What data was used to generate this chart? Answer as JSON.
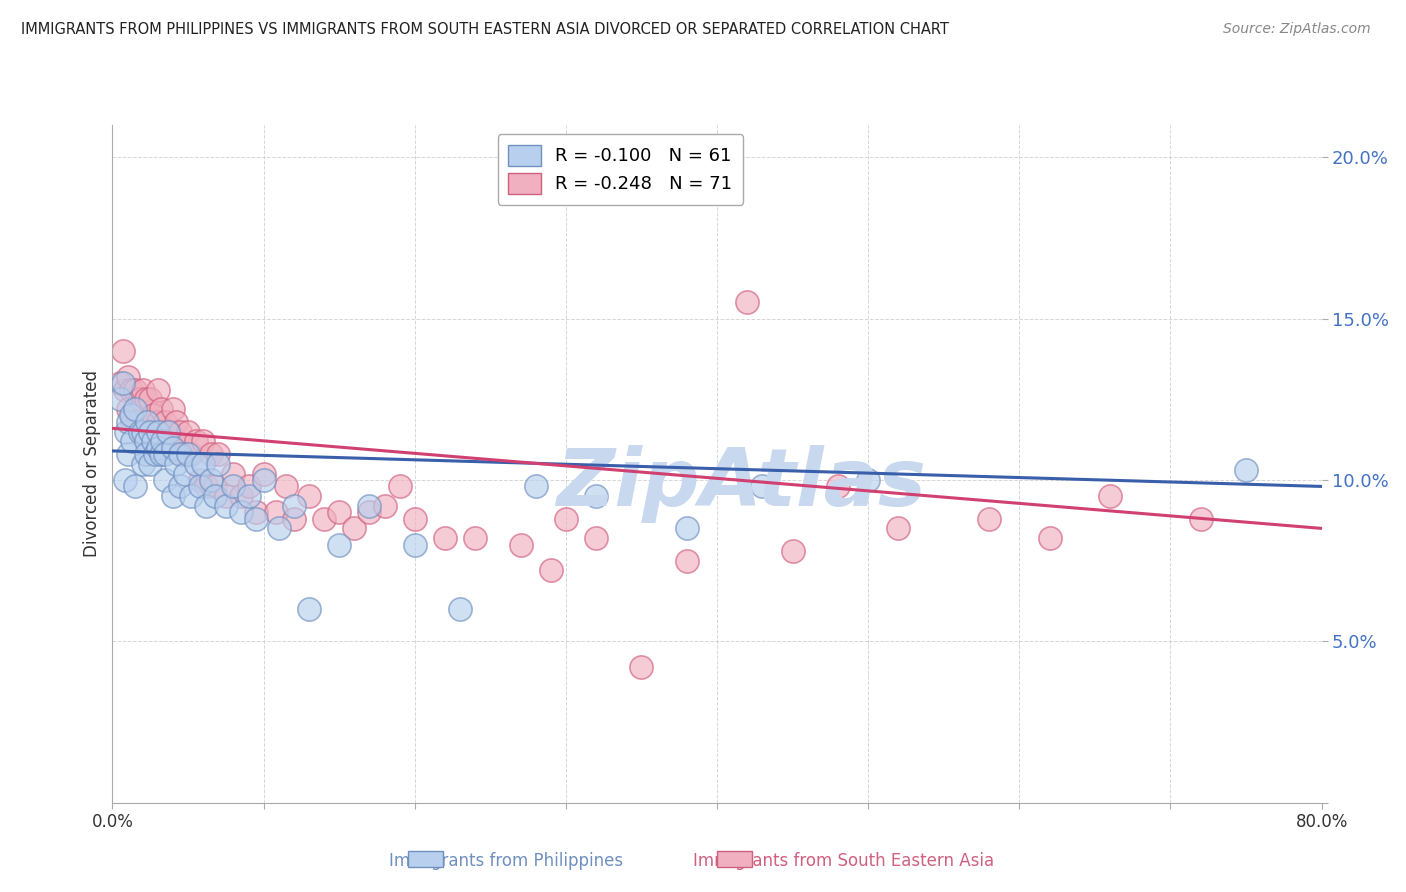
{
  "title": "IMMIGRANTS FROM PHILIPPINES VS IMMIGRANTS FROM SOUTH EASTERN ASIA DIVORCED OR SEPARATED CORRELATION CHART",
  "source": "Source: ZipAtlas.com",
  "xlabel_bottom": [
    "Immigrants from Philippines",
    "Immigrants from South Eastern Asia"
  ],
  "ylabel": "Divorced or Separated",
  "xlim": [
    0.0,
    0.8
  ],
  "ylim": [
    0.0,
    0.21
  ],
  "xticks": [
    0.0,
    0.1,
    0.2,
    0.3,
    0.4,
    0.5,
    0.6,
    0.7,
    0.8
  ],
  "xtick_labels": [
    "0.0%",
    "",
    "",
    "",
    "",
    "",
    "",
    "",
    "80.0%"
  ],
  "yticks": [
    0.0,
    0.05,
    0.1,
    0.15,
    0.2
  ],
  "ytick_labels": [
    "",
    "5.0%",
    "10.0%",
    "15.0%",
    "20.0%"
  ],
  "series_blue": {
    "label": "Immigrants from Philippines",
    "R": -0.1,
    "N": 61,
    "color": "#b8d0ee",
    "edge_color": "#7090c0",
    "x": [
      0.005,
      0.007,
      0.008,
      0.009,
      0.01,
      0.01,
      0.012,
      0.013,
      0.015,
      0.015,
      0.018,
      0.02,
      0.02,
      0.022,
      0.022,
      0.023,
      0.025,
      0.025,
      0.027,
      0.028,
      0.03,
      0.03,
      0.032,
      0.033,
      0.035,
      0.035,
      0.037,
      0.04,
      0.04,
      0.042,
      0.045,
      0.045,
      0.048,
      0.05,
      0.052,
      0.055,
      0.058,
      0.06,
      0.062,
      0.065,
      0.068,
      0.07,
      0.075,
      0.08,
      0.085,
      0.09,
      0.095,
      0.1,
      0.11,
      0.12,
      0.13,
      0.15,
      0.17,
      0.2,
      0.23,
      0.28,
      0.32,
      0.38,
      0.43,
      0.5,
      0.75
    ],
    "y": [
      0.125,
      0.13,
      0.1,
      0.115,
      0.118,
      0.108,
      0.12,
      0.112,
      0.122,
      0.098,
      0.115,
      0.115,
      0.105,
      0.112,
      0.108,
      0.118,
      0.115,
      0.105,
      0.112,
      0.108,
      0.115,
      0.11,
      0.108,
      0.112,
      0.108,
      0.1,
      0.115,
      0.11,
      0.095,
      0.105,
      0.108,
      0.098,
      0.102,
      0.108,
      0.095,
      0.105,
      0.098,
      0.105,
      0.092,
      0.1,
      0.095,
      0.105,
      0.092,
      0.098,
      0.09,
      0.095,
      0.088,
      0.1,
      0.085,
      0.092,
      0.06,
      0.08,
      0.092,
      0.08,
      0.06,
      0.098,
      0.095,
      0.085,
      0.098,
      0.1,
      0.103
    ]
  },
  "series_pink": {
    "label": "Immigrants from South Eastern Asia",
    "R": -0.248,
    "N": 71,
    "color": "#f0b0c0",
    "edge_color": "#d06080",
    "x": [
      0.005,
      0.007,
      0.008,
      0.01,
      0.01,
      0.012,
      0.013,
      0.015,
      0.016,
      0.018,
      0.02,
      0.02,
      0.022,
      0.023,
      0.025,
      0.025,
      0.027,
      0.028,
      0.03,
      0.03,
      0.032,
      0.033,
      0.035,
      0.038,
      0.04,
      0.04,
      0.042,
      0.045,
      0.047,
      0.05,
      0.052,
      0.055,
      0.058,
      0.06,
      0.062,
      0.065,
      0.068,
      0.07,
      0.075,
      0.08,
      0.085,
      0.09,
      0.095,
      0.1,
      0.108,
      0.115,
      0.12,
      0.13,
      0.14,
      0.15,
      0.16,
      0.17,
      0.18,
      0.19,
      0.2,
      0.22,
      0.24,
      0.27,
      0.3,
      0.32,
      0.29,
      0.35,
      0.38,
      0.42,
      0.45,
      0.48,
      0.52,
      0.58,
      0.62,
      0.66,
      0.72
    ],
    "y": [
      0.13,
      0.14,
      0.128,
      0.122,
      0.132,
      0.128,
      0.118,
      0.128,
      0.118,
      0.125,
      0.128,
      0.115,
      0.125,
      0.118,
      0.125,
      0.115,
      0.12,
      0.11,
      0.128,
      0.118,
      0.122,
      0.115,
      0.118,
      0.115,
      0.122,
      0.112,
      0.118,
      0.115,
      0.108,
      0.115,
      0.108,
      0.112,
      0.1,
      0.112,
      0.098,
      0.108,
      0.098,
      0.108,
      0.095,
      0.102,
      0.095,
      0.098,
      0.09,
      0.102,
      0.09,
      0.098,
      0.088,
      0.095,
      0.088,
      0.09,
      0.085,
      0.09,
      0.092,
      0.098,
      0.088,
      0.082,
      0.082,
      0.08,
      0.088,
      0.082,
      0.072,
      0.042,
      0.075,
      0.155,
      0.078,
      0.098,
      0.085,
      0.088,
      0.082,
      0.095,
      0.088
    ]
  },
  "blue_trendline": {
    "x_start": 0.0,
    "x_end": 0.8,
    "y_start": 0.109,
    "y_end": 0.098,
    "color": "#3a5faa"
  },
  "pink_trendline": {
    "x_start": 0.0,
    "x_end": 0.8,
    "y_start": 0.116,
    "y_end": 0.085,
    "color": "#d04070"
  },
  "watermark": "ZipAtlas",
  "watermark_color": "#c8d8ee",
  "background_color": "#ffffff",
  "grid_color": "#cccccc"
}
